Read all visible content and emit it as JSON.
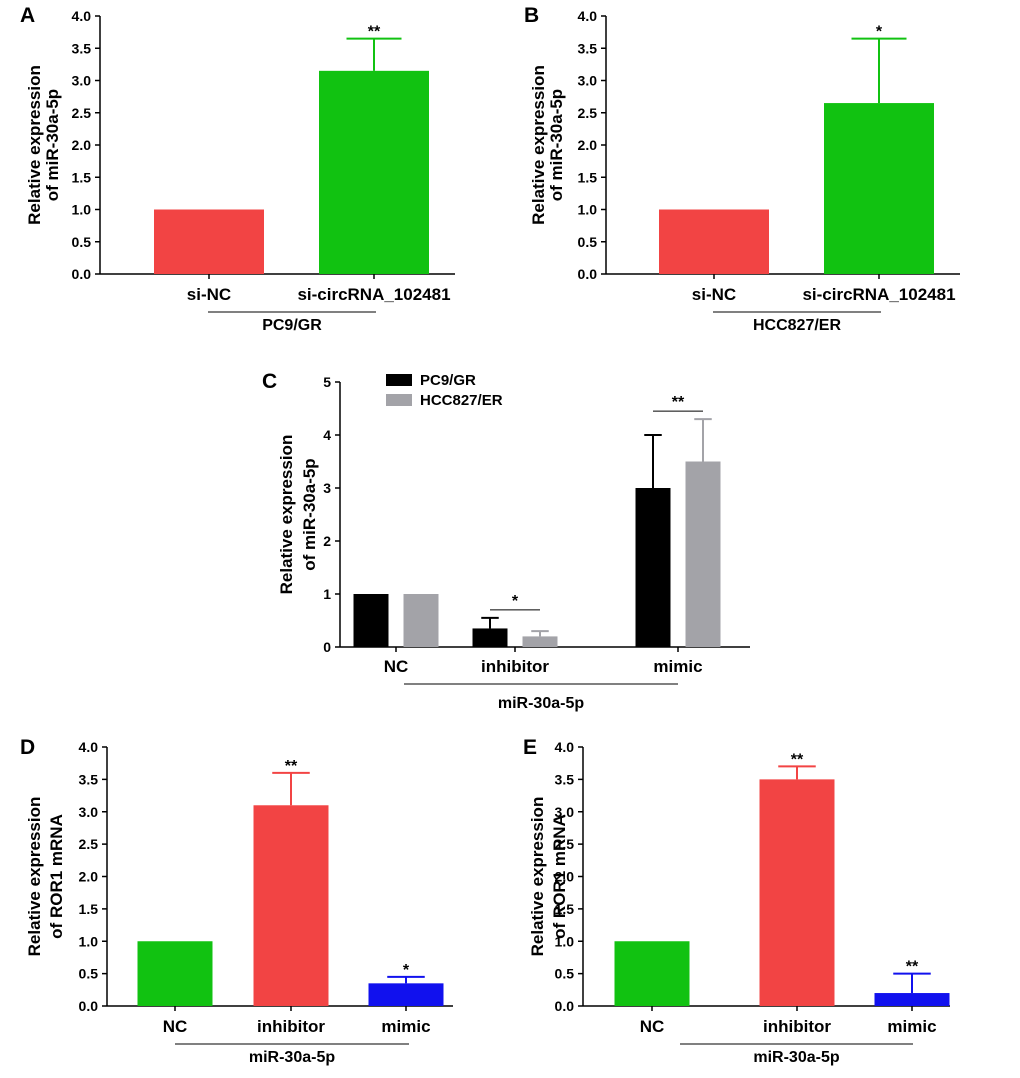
{
  "chart_data": [
    {
      "panel": "A",
      "type": "bar",
      "categories": [
        "si-NC",
        "si-circRNA_102481"
      ],
      "values": [
        1.0,
        3.15
      ],
      "errors": [
        0,
        0.5
      ],
      "colors": [
        "#f24444",
        "#11c211"
      ],
      "significance": [
        "",
        "**"
      ],
      "ylabel": [
        "Relative expression",
        "of miR-30a-5p"
      ],
      "group_label": "PC9/GR",
      "ylim": [
        0,
        4.0
      ],
      "yticks": [
        "0.0",
        "0.5",
        "1.0",
        "1.5",
        "2.0",
        "2.5",
        "3.0",
        "3.5",
        "4.0"
      ]
    },
    {
      "panel": "B",
      "type": "bar",
      "categories": [
        "si-NC",
        "si-circRNA_102481"
      ],
      "values": [
        1.0,
        2.65
      ],
      "errors": [
        0,
        1.0
      ],
      "colors": [
        "#f24444",
        "#11c211"
      ],
      "significance": [
        "",
        "*"
      ],
      "ylabel": [
        "Relative expression",
        "of miR-30a-5p"
      ],
      "group_label": "HCC827/ER",
      "ylim": [
        0,
        4.0
      ],
      "yticks": [
        "0.0",
        "0.5",
        "1.0",
        "1.5",
        "2.0",
        "2.5",
        "3.0",
        "3.5",
        "4.0"
      ]
    },
    {
      "panel": "C",
      "type": "bar",
      "categories": [
        "NC",
        "inhibitor",
        "mimic"
      ],
      "series": [
        {
          "name": "PC9/GR",
          "color": "#000000",
          "values": [
            1.0,
            0.35,
            3.0
          ],
          "errors": [
            0,
            0.2,
            1.0
          ]
        },
        {
          "name": "HCC827/ER",
          "color": "#a3a3a8",
          "values": [
            1.0,
            0.2,
            3.5
          ],
          "errors": [
            0,
            0.1,
            0.8
          ]
        }
      ],
      "significance": [
        "",
        "*",
        "**"
      ],
      "ylabel": [
        "Relative expression",
        "of miR-30a-5p"
      ],
      "group_label": "miR-30a-5p",
      "ylim": [
        0,
        5
      ],
      "yticks": [
        "0",
        "1",
        "2",
        "3",
        "4",
        "5"
      ]
    },
    {
      "panel": "D",
      "type": "bar",
      "categories": [
        "NC",
        "inhibitor",
        "mimic"
      ],
      "values": [
        1.0,
        3.1,
        0.35
      ],
      "errors": [
        0,
        0.5,
        0.1
      ],
      "colors": [
        "#11c211",
        "#f24444",
        "#1111ee"
      ],
      "significance": [
        "",
        "**",
        "*"
      ],
      "ylabel": [
        "Relative expression",
        "of ROR1 mRNA"
      ],
      "group_label": "miR-30a-5p",
      "ylim": [
        0,
        4.0
      ],
      "yticks": [
        "0.0",
        "0.5",
        "1.0",
        "1.5",
        "2.0",
        "2.5",
        "3.0",
        "3.5",
        "4.0"
      ]
    },
    {
      "panel": "E",
      "type": "bar",
      "categories": [
        "NC",
        "inhibitor",
        "mimic"
      ],
      "values": [
        1.0,
        3.5,
        0.2
      ],
      "errors": [
        0,
        0.2,
        0.3
      ],
      "colors": [
        "#11c211",
        "#f24444",
        "#1111ee"
      ],
      "significance": [
        "",
        "**",
        "**"
      ],
      "ylabel": [
        "Relative expression",
        "of ROR1 mRNA"
      ],
      "group_label": "miR-30a-5p",
      "ylim": [
        0,
        4.0
      ],
      "yticks": [
        "0.0",
        "0.5",
        "1.0",
        "1.5",
        "2.0",
        "2.5",
        "3.0",
        "3.5",
        "4.0"
      ]
    }
  ]
}
